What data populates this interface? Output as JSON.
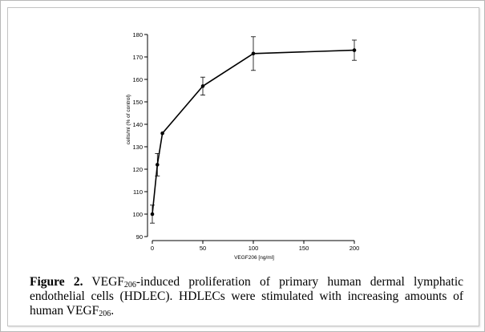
{
  "chart_data": {
    "type": "line",
    "title": "",
    "xlabel": "VEGF206 [ng/ml]",
    "ylabel": "cells/ml (% of control)",
    "xlim": [
      0,
      200
    ],
    "ylim": [
      90,
      180
    ],
    "x_ticks": [
      0,
      50,
      100,
      150,
      200
    ],
    "y_ticks": [
      90,
      100,
      110,
      120,
      130,
      140,
      150,
      160,
      170,
      180
    ],
    "grid": false,
    "series": [
      {
        "x": [
          0,
          5,
          10,
          50,
          100,
          200
        ],
        "y": [
          100,
          122,
          136,
          157,
          171.5,
          173
        ],
        "error": [
          4,
          5,
          0,
          4,
          7.5,
          4.5
        ]
      }
    ]
  },
  "caption": {
    "label": "Figure 2.",
    "text_a": "VEGF",
    "sub_a": "206",
    "text_b": "-induced proliferation of primary human dermal lymphatic endothelial cells (HDLEC). HDLECs were stimulated with increasing amounts of human VEGF",
    "sub_b": "206",
    "text_c": "."
  }
}
